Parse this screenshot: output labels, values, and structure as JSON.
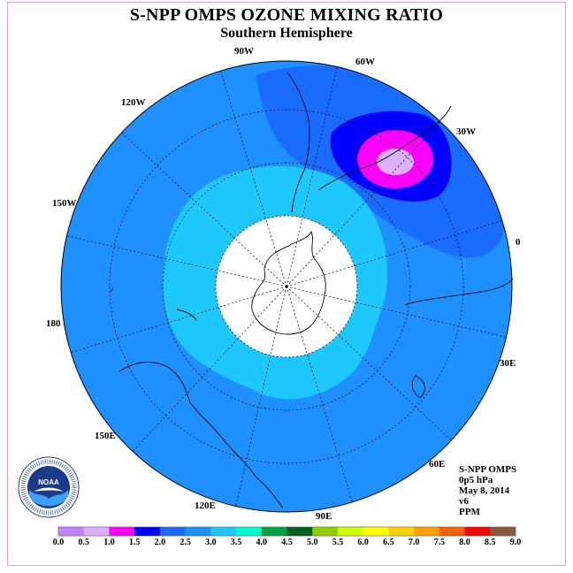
{
  "title": "S-NPP OMPS OZONE MIXING RATIO",
  "subtitle": "Southern Hemisphere",
  "logo_text": "NOAA",
  "logo_ring_text": "NATIONAL OCEANIC AND ATMOSPHERIC ADMINISTRATION · U.S. DEPARTMENT OF COMMERCE",
  "longitude_labels": {
    "lon_90w": "90W",
    "lon_60w": "60W",
    "lon_120w": "120W",
    "lon_30w": "30W",
    "lon_150w": "150W",
    "lon_0": "0",
    "lon_180": "180",
    "lon_30e": "30E",
    "lon_150e": "150E",
    "lon_60e": "60E",
    "lon_120e": "120E",
    "lon_90e": "90E"
  },
  "info": {
    "instrument": "S-NPP OMPS",
    "level": "0p5 hPa",
    "date": "May 8, 2014",
    "version": "v6",
    "units": "PPM"
  },
  "colorbar": {
    "ticks": [
      "0.0",
      "0.5",
      "1.0",
      "1.5",
      "2.0",
      "2.5",
      "3.0",
      "3.5",
      "4.0",
      "4.5",
      "5.0",
      "5.5",
      "6.0",
      "6.5",
      "7.0",
      "7.5",
      "8.0",
      "8.5",
      "9.0"
    ],
    "colors": [
      "#c080ff",
      "#dcb0ff",
      "#ff00ff",
      "#0000ff",
      "#1a6bff",
      "#1e90ff",
      "#1ec8ff",
      "#00ffd0",
      "#00a040",
      "#006020",
      "#90d000",
      "#d0ff00",
      "#ffff00",
      "#ffd000",
      "#ffa000",
      "#ff6000",
      "#ff0000",
      "#8b5a3c"
    ]
  },
  "field_colors": {
    "band_2_0_to_2_5": "#1a6bff",
    "band_2_5_to_3_0": "#1e90ff",
    "band_3_0_to_3_5": "#1ec8ff",
    "band_1_5_to_2_0": "#0000ff",
    "band_1_0_to_1_5": "#ff00ff",
    "band_0_5_to_1_0": "#dcb0ff",
    "missing": "#ffffff"
  }
}
